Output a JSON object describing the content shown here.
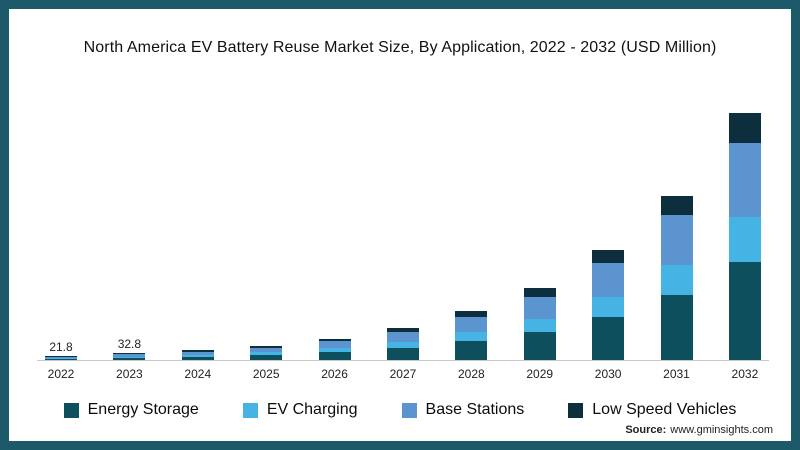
{
  "frame": {
    "border_color": "#1d5a69",
    "background": "#ffffff"
  },
  "title": "North America EV Battery Reuse Market Size, By Application, 2022 - 2032 (USD Million)",
  "source": {
    "prefix": "Source:",
    "text": "www.gminsights.com"
  },
  "chart_data": {
    "type": "bar",
    "stacked": true,
    "title": "North America EV Battery Reuse Market Size, By Application, 2022 - 2032 (USD Million)",
    "xlabel": "",
    "ylabel": "",
    "ylim": [
      0,
      1100
    ],
    "grid": false,
    "legend_position": "bottom",
    "categories": [
      "2022",
      "2023",
      "2024",
      "2025",
      "2026",
      "2027",
      "2028",
      "2029",
      "2030",
      "2031",
      "2032"
    ],
    "series": [
      {
        "name": "Energy Storage",
        "color": "#0e4f5e",
        "values": [
          8.7,
          13.1,
          18,
          26,
          38,
          56,
          84,
          124,
          188,
          280,
          420
        ]
      },
      {
        "name": "EV Charging",
        "color": "#45b4e4",
        "values": [
          3.9,
          5.9,
          8.1,
          11.7,
          17.1,
          25.2,
          37.8,
          55.8,
          84.6,
          126,
          189
        ]
      },
      {
        "name": "Base Stations",
        "color": "#5b94ce",
        "values": [
          6.6,
          9.9,
          13.5,
          19.5,
          28.5,
          42,
          63,
          93,
          141,
          210,
          315
        ]
      },
      {
        "name": "Low Speed Vehicles",
        "color": "#0d2e3d",
        "values": [
          2.6,
          3.9,
          5.4,
          7.8,
          11.4,
          16.8,
          25.2,
          37.2,
          56.4,
          84,
          126
        ]
      }
    ],
    "totals": [
      21.8,
      32.8,
      45,
      65,
      95,
      140,
      210,
      310,
      470,
      700,
      1050
    ],
    "data_labels": {
      "2022": "21.8",
      "2023": "32.8"
    }
  }
}
